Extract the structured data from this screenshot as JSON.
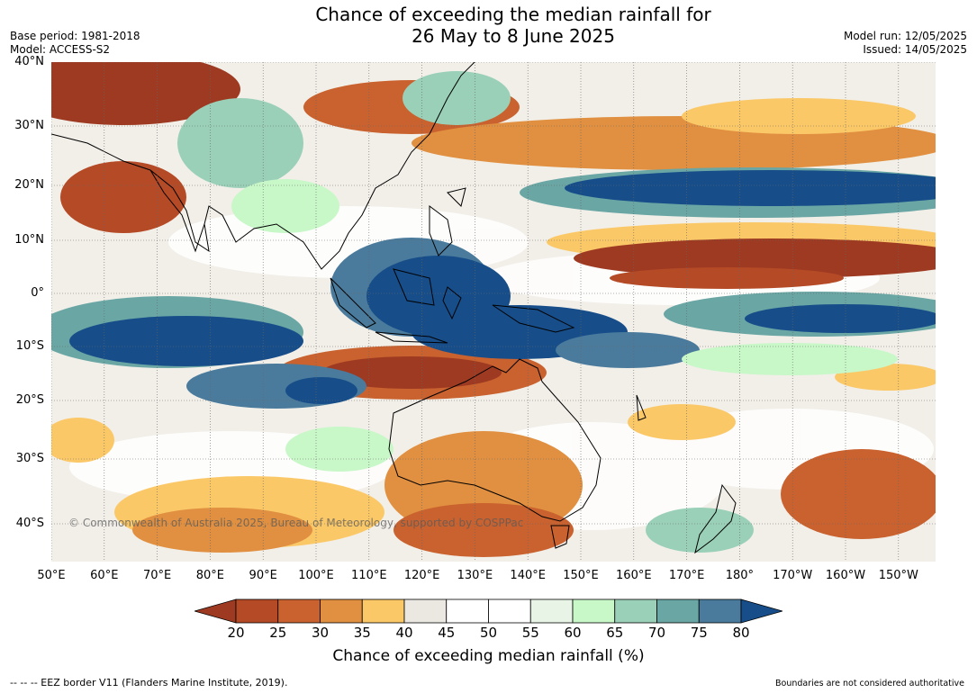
{
  "title_line1": "Chance of exceeding the median rainfall for",
  "title_line2": "26 May to 8 June 2025",
  "base_period": "Base period: 1981-2018",
  "model": "Model: ACCESS-S2",
  "model_run": "Model run: 12/05/2025",
  "issued": "Issued: 14/05/2025",
  "lat_labels": [
    "40°N",
    "30°N",
    "20°N",
    "10°N",
    "0°",
    "10°S",
    "20°S",
    "30°S",
    "40°S"
  ],
  "lon_labels": [
    "50°E",
    "60°E",
    "70°E",
    "80°E",
    "90°E",
    "100°E",
    "110°E",
    "120°E",
    "130°E",
    "140°E",
    "150°E",
    "160°E",
    "170°E",
    "180°",
    "170°W",
    "160°W",
    "150°W"
  ],
  "copyright": "© Commonwealth of Australia 2025, Bureau of Meteorology, supported by COSPPac",
  "colorbar": {
    "ticks": [
      "20",
      "25",
      "30",
      "35",
      "40",
      "45",
      "50",
      "55",
      "60",
      "65",
      "70",
      "75",
      "80"
    ],
    "colors": [
      "#9e3a22",
      "#b54a26",
      "#c9622e",
      "#e09040",
      "#fbc868",
      "#ebe8e2",
      "#ffffff",
      "#ffffff",
      "#e8f5e6",
      "#c8f7c8",
      "#9bd0b8",
      "#6aa6a4",
      "#4a7b9c",
      "#174e8a"
    ],
    "label": "Chance of exceeding median rainfall (%)"
  },
  "footer_left": "--  --  -- EEZ border V11 (Flanders Marine Institute, 2019).",
  "footer_right": "Boundaries are not considered authoritative"
}
